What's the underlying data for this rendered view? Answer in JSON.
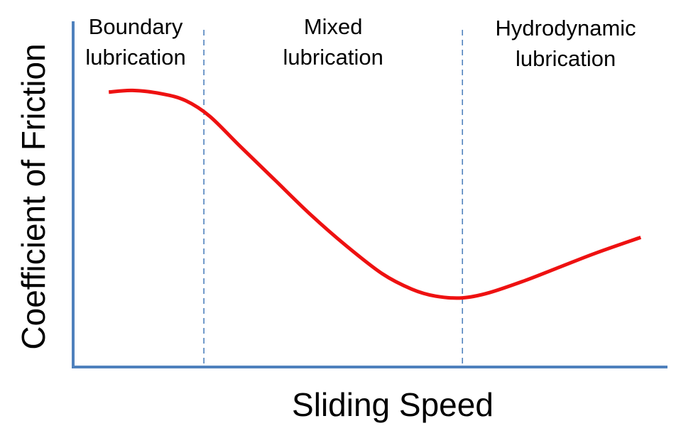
{
  "chart_data": {
    "type": "line",
    "title": "",
    "xlabel": "Sliding Speed",
    "ylabel": "Coefficient of Friction",
    "x_ticks_visible": false,
    "y_ticks_visible": false,
    "grid": false,
    "xlim": [
      0,
      1
    ],
    "ylim": [
      0,
      1
    ],
    "regions": [
      {
        "label_lines": [
          "Boundary",
          "lubrication"
        ],
        "x_start": 0.0,
        "x_end": 0.22
      },
      {
        "label_lines": [
          "Mixed",
          "lubrication"
        ],
        "x_start": 0.22,
        "x_end": 0.655
      },
      {
        "label_lines": [
          "Hydrodynamic",
          "lubrication"
        ],
        "x_start": 0.655,
        "x_end": 1.0
      }
    ],
    "dividers_x": [
      0.22,
      0.655
    ],
    "divider_style": "dashed",
    "series": [
      {
        "color": "#ee1111",
        "x": [
          0.06,
          0.1,
          0.15,
          0.19,
          0.23,
          0.28,
          0.34,
          0.4,
          0.46,
          0.52,
          0.57,
          0.61,
          0.655,
          0.7,
          0.76,
          0.82,
          0.88,
          0.955
        ],
        "y": [
          0.795,
          0.8,
          0.79,
          0.77,
          0.725,
          0.64,
          0.54,
          0.44,
          0.35,
          0.27,
          0.225,
          0.205,
          0.2,
          0.215,
          0.25,
          0.29,
          0.33,
          0.375
        ]
      }
    ],
    "axis_color": "#4f81bd",
    "divider_color": "#4f81bd"
  }
}
